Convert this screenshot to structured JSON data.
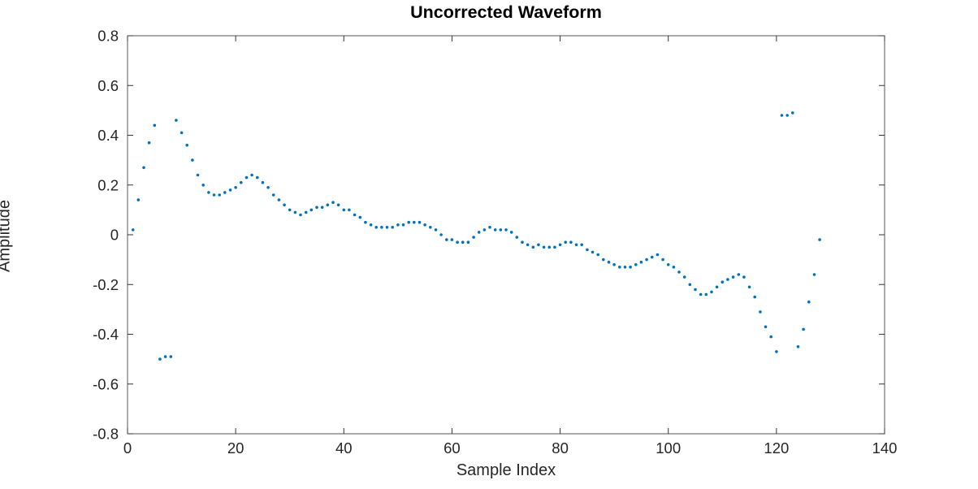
{
  "chart_data": {
    "type": "scatter",
    "title": "Uncorrected Waveform",
    "xlabel": "Sample Index",
    "ylabel": "Amplitude",
    "xlim": [
      0,
      140
    ],
    "ylim": [
      -0.8,
      0.8
    ],
    "xticks": [
      0,
      20,
      40,
      60,
      80,
      100,
      120,
      140
    ],
    "xtick_labels": [
      "0",
      "20",
      "40",
      "60",
      "80",
      "100",
      "120",
      "140"
    ],
    "yticks": [
      -0.8,
      -0.6,
      -0.4,
      -0.2,
      0,
      0.2,
      0.4,
      0.6,
      0.8
    ],
    "ytick_labels": [
      "-0.8",
      "-0.6",
      "-0.4",
      "-0.2",
      "0",
      "0.2",
      "0.4",
      "0.6",
      "0.8"
    ],
    "grid": false,
    "box": true,
    "tick_direction": "in",
    "legend": "none",
    "marker_color": "#0072BD",
    "marker_style": "point",
    "x_start": 1,
    "x_step": 1,
    "values": [
      0.02,
      0.14,
      0.27,
      0.37,
      0.44,
      -0.5,
      -0.49,
      -0.49,
      0.46,
      0.41,
      0.36,
      0.3,
      0.24,
      0.2,
      0.17,
      0.16,
      0.16,
      0.17,
      0.18,
      0.19,
      0.21,
      0.23,
      0.24,
      0.23,
      0.21,
      0.19,
      0.16,
      0.14,
      0.12,
      0.1,
      0.09,
      0.08,
      0.09,
      0.1,
      0.11,
      0.11,
      0.12,
      0.13,
      0.12,
      0.1,
      0.1,
      0.08,
      0.07,
      0.05,
      0.04,
      0.03,
      0.03,
      0.03,
      0.03,
      0.04,
      0.04,
      0.05,
      0.05,
      0.05,
      0.04,
      0.03,
      0.02,
      0.0,
      -0.02,
      -0.02,
      -0.03,
      -0.03,
      -0.03,
      -0.01,
      0.01,
      0.02,
      0.03,
      0.02,
      0.02,
      0.02,
      0.01,
      -0.01,
      -0.03,
      -0.04,
      -0.05,
      -0.04,
      -0.05,
      -0.05,
      -0.05,
      -0.04,
      -0.03,
      -0.03,
      -0.04,
      -0.04,
      -0.06,
      -0.07,
      -0.08,
      -0.1,
      -0.11,
      -0.12,
      -0.13,
      -0.13,
      -0.13,
      -0.12,
      -0.11,
      -0.1,
      -0.09,
      -0.08,
      -0.1,
      -0.12,
      -0.13,
      -0.15,
      -0.17,
      -0.2,
      -0.22,
      -0.24,
      -0.24,
      -0.23,
      -0.21,
      -0.19,
      -0.18,
      -0.17,
      -0.16,
      -0.17,
      -0.21,
      -0.25,
      -0.31,
      -0.37,
      -0.41,
      -0.47,
      0.48,
      0.48,
      0.49,
      -0.45,
      -0.38,
      -0.27,
      -0.16,
      -0.02
    ]
  }
}
